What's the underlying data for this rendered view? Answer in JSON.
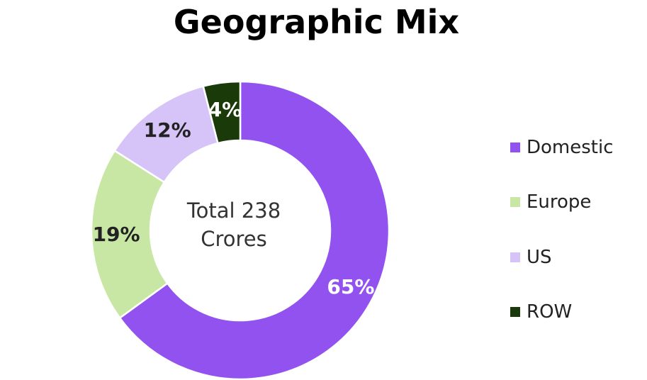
{
  "chart_data": {
    "type": "pie",
    "title": "Geographic Mix",
    "center_label": [
      "Total 238",
      "Crores"
    ],
    "categories": [
      "Domestic",
      "Europe",
      "US",
      "ROW"
    ],
    "values": [
      65,
      19,
      12,
      4
    ],
    "value_labels": [
      "65%",
      "19%",
      "12%",
      "4%"
    ],
    "colors": [
      "#9152EF",
      "#C8E6A4",
      "#D6C3F8",
      "#1A3A0A"
    ],
    "label_colors": [
      "#ffffff",
      "#222222",
      "#222222",
      "#ffffff"
    ],
    "legend_position": "right",
    "donut": true
  }
}
